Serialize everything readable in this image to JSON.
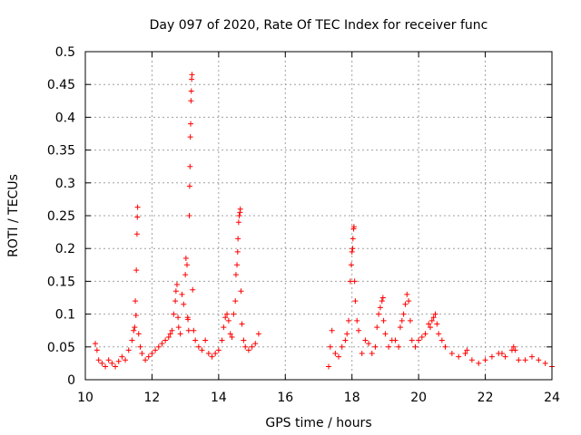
{
  "chart_data": {
    "type": "scatter",
    "title": "Day 097 of 2020, Rate Of TEC Index for receiver func",
    "xlabel": "GPS time / hours",
    "ylabel": "ROTI / TECUs",
    "xlim": [
      10,
      24
    ],
    "ylim": [
      0,
      0.5
    ],
    "xticks": [
      "10",
      "12",
      "14",
      "16",
      "18",
      "20",
      "22",
      "24"
    ],
    "yticks": [
      "0",
      "0.05",
      "0.1",
      "0.15",
      "0.2",
      "0.25",
      "0.3",
      "0.35",
      "0.4",
      "0.45",
      "0.5"
    ],
    "grid": true,
    "marker": "+",
    "color": "#ff0000",
    "series": [
      {
        "points": [
          [
            10.3,
            0.055
          ],
          [
            10.35,
            0.045
          ],
          [
            10.4,
            0.03
          ],
          [
            10.5,
            0.025
          ],
          [
            10.6,
            0.02
          ],
          [
            10.7,
            0.03
          ],
          [
            10.8,
            0.025
          ],
          [
            10.9,
            0.02
          ],
          [
            11.0,
            0.028
          ],
          [
            11.1,
            0.035
          ],
          [
            11.2,
            0.03
          ],
          [
            11.3,
            0.045
          ],
          [
            11.4,
            0.06
          ],
          [
            11.45,
            0.075
          ],
          [
            11.48,
            0.08
          ],
          [
            11.5,
            0.12
          ],
          [
            11.52,
            0.098
          ],
          [
            11.53,
            0.167
          ],
          [
            11.55,
            0.222
          ],
          [
            11.56,
            0.248
          ],
          [
            11.57,
            0.263
          ],
          [
            11.6,
            0.07
          ],
          [
            11.65,
            0.05
          ],
          [
            11.7,
            0.04
          ],
          [
            11.8,
            0.03
          ],
          [
            11.9,
            0.035
          ],
          [
            12.0,
            0.04
          ],
          [
            12.1,
            0.045
          ],
          [
            12.2,
            0.05
          ],
          [
            12.3,
            0.055
          ],
          [
            12.4,
            0.06
          ],
          [
            12.5,
            0.065
          ],
          [
            12.55,
            0.07
          ],
          [
            12.6,
            0.075
          ],
          [
            12.65,
            0.1
          ],
          [
            12.7,
            0.12
          ],
          [
            12.72,
            0.135
          ],
          [
            12.75,
            0.145
          ],
          [
            12.78,
            0.095
          ],
          [
            12.8,
            0.08
          ],
          [
            12.85,
            0.07
          ],
          [
            12.9,
            0.13
          ],
          [
            12.95,
            0.115
          ],
          [
            13.0,
            0.16
          ],
          [
            13.02,
            0.185
          ],
          [
            13.05,
            0.175
          ],
          [
            13.07,
            0.095
          ],
          [
            13.08,
            0.092
          ],
          [
            13.1,
            0.075
          ],
          [
            13.12,
            0.25
          ],
          [
            13.13,
            0.295
          ],
          [
            13.14,
            0.325
          ],
          [
            13.15,
            0.37
          ],
          [
            13.16,
            0.39
          ],
          [
            13.17,
            0.425
          ],
          [
            13.18,
            0.44
          ],
          [
            13.19,
            0.458
          ],
          [
            13.2,
            0.465
          ],
          [
            13.22,
            0.137
          ],
          [
            13.25,
            0.075
          ],
          [
            13.3,
            0.06
          ],
          [
            13.4,
            0.05
          ],
          [
            13.5,
            0.045
          ],
          [
            13.6,
            0.06
          ],
          [
            13.7,
            0.04
          ],
          [
            13.8,
            0.035
          ],
          [
            13.9,
            0.04
          ],
          [
            14.0,
            0.045
          ],
          [
            14.1,
            0.06
          ],
          [
            14.15,
            0.08
          ],
          [
            14.2,
            0.095
          ],
          [
            14.25,
            0.1
          ],
          [
            14.3,
            0.09
          ],
          [
            14.35,
            0.07
          ],
          [
            14.4,
            0.065
          ],
          [
            14.45,
            0.1
          ],
          [
            14.5,
            0.12
          ],
          [
            14.52,
            0.16
          ],
          [
            14.55,
            0.175
          ],
          [
            14.57,
            0.195
          ],
          [
            14.58,
            0.215
          ],
          [
            14.6,
            0.24
          ],
          [
            14.62,
            0.25
          ],
          [
            14.64,
            0.255
          ],
          [
            14.65,
            0.26
          ],
          [
            14.67,
            0.135
          ],
          [
            14.7,
            0.085
          ],
          [
            14.75,
            0.06
          ],
          [
            14.8,
            0.05
          ],
          [
            14.9,
            0.045
          ],
          [
            15.0,
            0.05
          ],
          [
            15.1,
            0.055
          ],
          [
            15.2,
            0.07
          ],
          [
            17.3,
            0.02
          ],
          [
            17.35,
            0.05
          ],
          [
            17.4,
            0.075
          ],
          [
            17.5,
            0.04
          ],
          [
            17.6,
            0.035
          ],
          [
            17.7,
            0.05
          ],
          [
            17.8,
            0.06
          ],
          [
            17.85,
            0.07
          ],
          [
            17.9,
            0.09
          ],
          [
            17.95,
            0.15
          ],
          [
            17.98,
            0.175
          ],
          [
            18.0,
            0.195
          ],
          [
            18.02,
            0.2
          ],
          [
            18.03,
            0.215
          ],
          [
            18.05,
            0.23
          ],
          [
            18.06,
            0.233
          ],
          [
            18.08,
            0.15
          ],
          [
            18.1,
            0.12
          ],
          [
            18.15,
            0.09
          ],
          [
            18.2,
            0.075
          ],
          [
            18.3,
            0.04
          ],
          [
            18.4,
            0.06
          ],
          [
            18.5,
            0.055
          ],
          [
            18.6,
            0.04
          ],
          [
            18.7,
            0.05
          ],
          [
            18.75,
            0.08
          ],
          [
            18.8,
            0.1
          ],
          [
            18.85,
            0.11
          ],
          [
            18.9,
            0.12
          ],
          [
            18.93,
            0.125
          ],
          [
            18.95,
            0.09
          ],
          [
            19.0,
            0.07
          ],
          [
            19.1,
            0.05
          ],
          [
            19.2,
            0.06
          ],
          [
            19.3,
            0.06
          ],
          [
            19.4,
            0.05
          ],
          [
            19.45,
            0.08
          ],
          [
            19.5,
            0.09
          ],
          [
            19.55,
            0.1
          ],
          [
            19.6,
            0.115
          ],
          [
            19.65,
            0.13
          ],
          [
            19.7,
            0.12
          ],
          [
            19.75,
            0.09
          ],
          [
            19.8,
            0.06
          ],
          [
            19.9,
            0.05
          ],
          [
            20.0,
            0.06
          ],
          [
            20.1,
            0.065
          ],
          [
            20.2,
            0.07
          ],
          [
            20.3,
            0.085
          ],
          [
            20.35,
            0.08
          ],
          [
            20.4,
            0.09
          ],
          [
            20.45,
            0.095
          ],
          [
            20.5,
            0.1
          ],
          [
            20.55,
            0.085
          ],
          [
            20.6,
            0.07
          ],
          [
            20.7,
            0.06
          ],
          [
            20.8,
            0.05
          ],
          [
            21.0,
            0.04
          ],
          [
            21.2,
            0.035
          ],
          [
            21.4,
            0.04
          ],
          [
            21.45,
            0.045
          ],
          [
            21.6,
            0.03
          ],
          [
            21.8,
            0.025
          ],
          [
            22.0,
            0.03
          ],
          [
            22.2,
            0.035
          ],
          [
            22.4,
            0.04
          ],
          [
            22.5,
            0.04
          ],
          [
            22.6,
            0.035
          ],
          [
            22.8,
            0.045
          ],
          [
            22.85,
            0.05
          ],
          [
            22.9,
            0.045
          ],
          [
            23.0,
            0.03
          ],
          [
            23.2,
            0.03
          ],
          [
            23.4,
            0.035
          ],
          [
            23.6,
            0.03
          ],
          [
            23.8,
            0.025
          ],
          [
            24.0,
            0.02
          ]
        ]
      }
    ]
  }
}
